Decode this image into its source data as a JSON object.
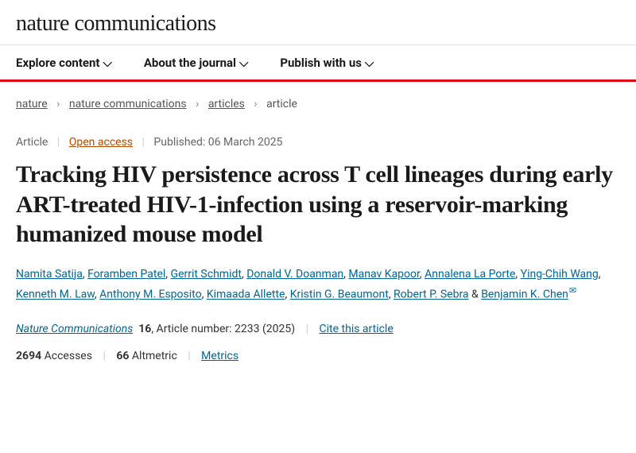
{
  "brand": "nature communications",
  "nav": {
    "items": [
      {
        "label": "Explore content"
      },
      {
        "label": "About the journal"
      },
      {
        "label": "Publish with us"
      }
    ]
  },
  "breadcrumb": {
    "items": [
      "nature",
      "nature communications",
      "articles",
      "article"
    ]
  },
  "meta": {
    "type": "Article",
    "access": "Open access",
    "published_label": "Published:",
    "published_date": "06 March 2025"
  },
  "title": "Tracking HIV persistence across T cell lineages during early ART-treated HIV-1-infection using a reservoir-marking humanized mouse model",
  "authors": [
    {
      "name": "Namita Satija"
    },
    {
      "name": "Foramben Patel"
    },
    {
      "name": "Gerrit Schmidt"
    },
    {
      "name": "Donald V. Doanman"
    },
    {
      "name": "Manav Kapoor"
    },
    {
      "name": "Annalena La Porte"
    },
    {
      "name": "Ying-Chih Wang"
    },
    {
      "name": "Kenneth M. Law"
    },
    {
      "name": "Anthony M. Esposito"
    },
    {
      "name": "Kimaada Allette"
    },
    {
      "name": "Kristin G. Beaumont"
    },
    {
      "name": "Robert P. Sebra"
    },
    {
      "name": "Benjamin K. Chen",
      "corresponding": true
    }
  ],
  "journal": {
    "name": "Nature Communications",
    "volume": "16",
    "article_number_label": ", Article number:",
    "article_number": "2233",
    "year": "(2025)",
    "cite": "Cite this article"
  },
  "stats": {
    "accesses": "2694",
    "accesses_label": "Accesses",
    "altmetric": "66",
    "altmetric_label": "Altmetric",
    "metrics": "Metrics"
  },
  "colors": {
    "accent_red": "#e30613",
    "link_blue": "#006699",
    "oa_orange": "#b54a00"
  }
}
